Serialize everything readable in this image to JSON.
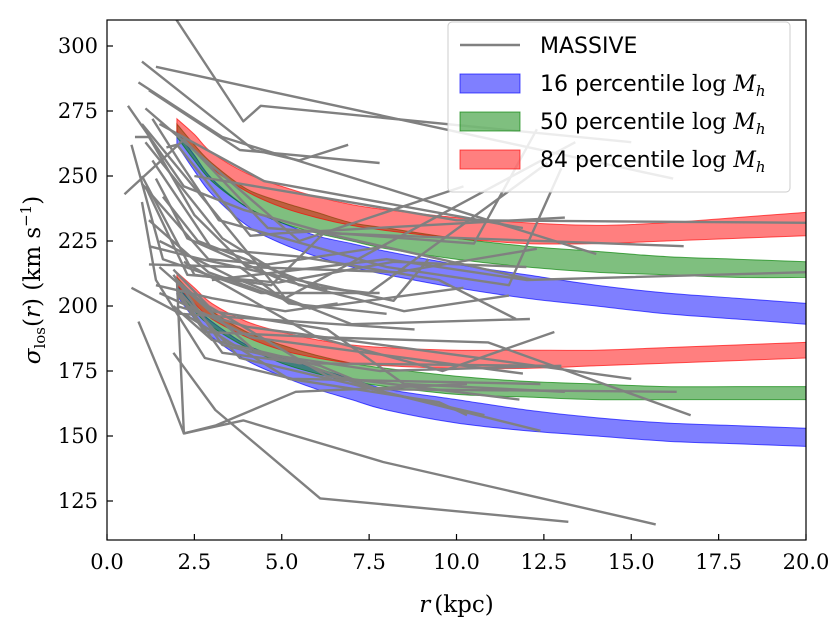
{
  "chart_data": {
    "type": "line",
    "xlabel": "r (kpc)",
    "ylabel": "σlos(r) (km s−1)",
    "xlim": [
      0.0,
      20.0
    ],
    "ylim": [
      110,
      310
    ],
    "xticks": [
      0.0,
      2.5,
      5.0,
      7.5,
      10.0,
      12.5,
      15.0,
      17.5,
      20.0
    ],
    "xtick_labels": [
      "0.0",
      "2.5",
      "5.0",
      "7.5",
      "10.0",
      "12.5",
      "15.0",
      "17.5",
      "20.0"
    ],
    "yticks": [
      125,
      150,
      175,
      200,
      225,
      250,
      275,
      300
    ],
    "ytick_labels": [
      "125",
      "150",
      "175",
      "200",
      "225",
      "250",
      "275",
      "300"
    ],
    "legend_position": "top-right",
    "legend": [
      {
        "label": "MASSIVE",
        "kind": "line",
        "color": "#808080"
      },
      {
        "label": "16 percentile log Mh",
        "kind": "patch",
        "color": "#0000ff"
      },
      {
        "label": "50 percentile log Mh",
        "kind": "patch",
        "color": "#008000"
      },
      {
        "label": "84 percentile log Mh",
        "kind": "patch",
        "color": "#ff0000"
      }
    ],
    "legend_math": {
      "word": "percentile",
      "log": "log",
      "var": "M",
      "sub": "h"
    },
    "bands": [
      {
        "group": "upper",
        "percentile": 16,
        "color": "#0000ff",
        "x": [
          2.0,
          2.5,
          3.0,
          4.0,
          5.0,
          6.0,
          7.0,
          8.0,
          10.0,
          12.0,
          14.0,
          16.0,
          18.0,
          20.0
        ],
        "y_low": [
          262,
          252,
          243,
          231,
          224,
          219,
          215,
          212,
          207,
          203,
          200,
          197,
          195,
          193
        ],
        "y_high": [
          267,
          258,
          249,
          238,
          232,
          227,
          224,
          221,
          216,
          212,
          208,
          205,
          203,
          201
        ]
      },
      {
        "group": "upper",
        "percentile": 50,
        "color": "#008000",
        "x": [
          2.0,
          2.5,
          3.0,
          4.0,
          5.0,
          6.0,
          7.0,
          8.0,
          10.0,
          12.0,
          14.0,
          16.0,
          18.0,
          20.0
        ],
        "y_low": [
          265,
          256,
          248,
          238,
          232,
          228,
          225,
          222,
          218,
          215,
          213,
          212,
          211,
          211
        ],
        "y_high": [
          270,
          262,
          255,
          245,
          240,
          236,
          232,
          230,
          226,
          223,
          221,
          219,
          218,
          217
        ]
      },
      {
        "group": "upper",
        "percentile": 84,
        "color": "#ff0000",
        "x": [
          2.0,
          2.5,
          3.0,
          4.0,
          5.0,
          6.0,
          7.0,
          8.0,
          10.0,
          12.0,
          14.0,
          16.0,
          18.0,
          20.0
        ],
        "y_low": [
          267,
          260,
          253,
          244,
          238,
          234,
          231,
          229,
          226,
          224,
          224,
          225,
          226,
          227
        ],
        "y_high": [
          272,
          266,
          259,
          251,
          246,
          242,
          239,
          237,
          234,
          232,
          231,
          232,
          234,
          236
        ]
      },
      {
        "group": "lower",
        "percentile": 16,
        "color": "#0000ff",
        "x": [
          2.0,
          2.5,
          3.0,
          4.0,
          5.0,
          6.0,
          7.0,
          8.0,
          10.0,
          12.0,
          14.0,
          16.0,
          18.0,
          20.0
        ],
        "y_low": [
          204,
          195,
          188,
          179,
          173,
          168,
          164,
          160,
          155,
          152,
          150,
          148,
          147,
          146
        ],
        "y_high": [
          208,
          200,
          194,
          185,
          180,
          176,
          172,
          168,
          164,
          160,
          157,
          155,
          154,
          153
        ]
      },
      {
        "group": "lower",
        "percentile": 50,
        "color": "#008000",
        "x": [
          2.0,
          2.5,
          3.0,
          4.0,
          5.0,
          6.0,
          7.0,
          8.0,
          10.0,
          12.0,
          14.0,
          16.0,
          18.0,
          20.0
        ],
        "y_low": [
          206,
          198,
          192,
          184,
          178,
          174,
          171,
          169,
          166,
          165,
          164,
          164,
          164,
          164
        ],
        "y_high": [
          211,
          204,
          198,
          190,
          185,
          181,
          178,
          176,
          173,
          171,
          170,
          169,
          169,
          169
        ]
      },
      {
        "group": "lower",
        "percentile": 84,
        "color": "#ff0000",
        "x": [
          2.0,
          2.5,
          3.0,
          4.0,
          5.0,
          6.0,
          7.0,
          8.0,
          10.0,
          12.0,
          14.0,
          16.0,
          18.0,
          20.0
        ],
        "y_low": [
          208,
          201,
          195,
          188,
          183,
          180,
          178,
          177,
          176,
          176,
          177,
          178,
          179,
          180
        ],
        "y_high": [
          213,
          207,
          201,
          194,
          190,
          187,
          185,
          184,
          183,
          183,
          183,
          184,
          185,
          186
        ]
      }
    ],
    "massive_profiles": [
      {
        "x": [
          1.5,
          3.9,
          4.4,
          15.0
        ],
        "y": [
          320,
          271,
          277,
          263
        ]
      },
      {
        "x": [
          1.4,
          16.2
        ],
        "y": [
          292,
          249
        ]
      },
      {
        "x": [
          1.0,
          4.2,
          5.5,
          6.9
        ],
        "y": [
          294,
          260,
          256,
          262
        ]
      },
      {
        "x": [
          0.9,
          3.3,
          14.0
        ],
        "y": [
          286,
          265,
          220
        ]
      },
      {
        "x": [
          1.2,
          3.8,
          7.8
        ],
        "y": [
          283,
          260,
          255
        ]
      },
      {
        "x": [
          0.6,
          2.2,
          3.9,
          6.3,
          16.5
        ],
        "y": [
          277,
          246,
          237,
          228,
          223
        ]
      },
      {
        "x": [
          1.3,
          2.1,
          3.2,
          8.0,
          11.5,
          13.0
        ],
        "y": [
          272,
          255,
          233,
          215,
          208,
          253
        ]
      },
      {
        "x": [
          1.5,
          4.5,
          11.9
        ],
        "y": [
          270,
          248,
          230
        ]
      },
      {
        "x": [
          1.1,
          5.5,
          10.2
        ],
        "y": [
          276,
          225,
          246
        ]
      },
      {
        "x": [
          0.5,
          2.2,
          4.6,
          10.5,
          12.3
        ],
        "y": [
          243,
          264,
          230,
          224,
          268
        ]
      },
      {
        "x": [
          0.8,
          1.2,
          2.5,
          4.0,
          8.3,
          12.3
        ],
        "y": [
          265,
          265,
          235,
          215,
          213,
          222
        ]
      },
      {
        "x": [
          1.0,
          5.1,
          13.4
        ],
        "y": [
          270,
          203,
          263
        ]
      },
      {
        "x": [
          1.7,
          2.0,
          4.1,
          5.0,
          13.1
        ],
        "y": [
          261,
          262,
          227,
          228,
          234
        ]
      },
      {
        "x": [
          1.1,
          3.3,
          5.5,
          7.5,
          12.6
        ],
        "y": [
          263,
          226,
          208,
          205,
          255
        ]
      },
      {
        "x": [
          1.3,
          3.0,
          5.5,
          9.5,
          11.7
        ],
        "y": [
          256,
          222,
          219,
          210,
          195
        ]
      },
      {
        "x": [
          1.0,
          2.5,
          4.7,
          6.2,
          12.2
        ],
        "y": [
          250,
          212,
          208,
          228,
          210
        ]
      },
      {
        "x": [
          1.4,
          2.3,
          5.0,
          8.5,
          11.5
        ],
        "y": [
          249,
          226,
          210,
          198,
          204
        ]
      },
      {
        "x": [
          1.0,
          2.9,
          4.6,
          8.0
        ],
        "y": [
          247,
          218,
          216,
          223
        ]
      },
      {
        "x": [
          1.2,
          2.9,
          5.8,
          10.2
        ],
        "y": [
          233,
          213,
          199,
          207
        ]
      },
      {
        "x": [
          1.1,
          2.3,
          4.9,
          8.2,
          12.0
        ],
        "y": [
          246,
          212,
          209,
          217,
          215
        ]
      },
      {
        "x": [
          1.6,
          2.6,
          6.3
        ],
        "y": [
          242,
          225,
          206
        ]
      },
      {
        "x": [
          1.2,
          2.7,
          8.2,
          9.2
        ],
        "y": [
          223,
          218,
          202,
          218
        ]
      },
      {
        "x": [
          1.2,
          3.8,
          5.2,
          8.0
        ],
        "y": [
          216,
          215,
          201,
          197
        ]
      },
      {
        "x": [
          1.5,
          3.6,
          7.0,
          12.1
        ],
        "y": [
          225,
          211,
          193,
          195
        ]
      },
      {
        "x": [
          0.7,
          1.6,
          4.4,
          7.8
        ],
        "y": [
          262,
          218,
          205,
          205
        ]
      },
      {
        "x": [
          1.4,
          3.0,
          5.1,
          6.6
        ],
        "y": [
          208,
          203,
          198,
          201
        ]
      },
      {
        "x": [
          1.5,
          2.8,
          4.1,
          11.9
        ],
        "y": [
          205,
          197,
          188,
          174
        ]
      },
      {
        "x": [
          0.7,
          2.1,
          8.8
        ],
        "y": [
          207,
          197,
          191
        ]
      },
      {
        "x": [
          2.0,
          2.8,
          6.1,
          10.9,
          16.7
        ],
        "y": [
          205,
          190,
          188,
          186,
          158
        ]
      },
      {
        "x": [
          1.5,
          4.3,
          7.8,
          13.0
        ],
        "y": [
          215,
          182,
          175,
          177
        ]
      },
      {
        "x": [
          2.2,
          6.0,
          9.6,
          12.8
        ],
        "y": [
          217,
          188,
          175,
          190
        ]
      },
      {
        "x": [
          2.0,
          3.0,
          6.3,
          8.5,
          13.1
        ],
        "y": [
          210,
          198,
          191,
          170,
          167
        ]
      },
      {
        "x": [
          2.0,
          4.0,
          10.1,
          15.0
        ],
        "y": [
          200,
          192,
          181,
          172
        ]
      },
      {
        "x": [
          1.0,
          1.4,
          2.8,
          5.3,
          12.4
        ],
        "y": [
          240,
          210,
          180,
          172,
          170
        ]
      },
      {
        "x": [
          2.1,
          3.8,
          7.0,
          12.4
        ],
        "y": [
          205,
          180,
          170,
          152
        ]
      },
      {
        "x": [
          1.9,
          2.9,
          6.3,
          11.8
        ],
        "y": [
          214,
          200,
          173,
          164
        ]
      },
      {
        "x": [
          2.0,
          3.3,
          5.6,
          7.6,
          16.3
        ],
        "y": [
          206,
          182,
          178,
          168,
          167
        ]
      },
      {
        "x": [
          2.2,
          5.2,
          9.5,
          10.3
        ],
        "y": [
          197,
          172,
          163,
          158
        ]
      },
      {
        "x": [
          1.9,
          3.0,
          6.1,
          7.9,
          10.8
        ],
        "y": [
          200,
          187,
          177,
          167,
          158
        ]
      },
      {
        "x": [
          0.9,
          1.8,
          2.2,
          3.1,
          5.4,
          10.3
        ],
        "y": [
          194,
          165,
          151,
          154,
          167,
          170
        ]
      },
      {
        "x": [
          1.9,
          3.3,
          5.5,
          12.6
        ],
        "y": [
          212,
          185,
          178,
          177
        ]
      },
      {
        "x": [
          2.0,
          2.2,
          3.9,
          7.9,
          15.7
        ],
        "y": [
          210,
          151,
          156,
          140,
          116
        ]
      },
      {
        "x": [
          1.9,
          3.1,
          6.1,
          13.2
        ],
        "y": [
          182,
          160,
          126,
          117
        ]
      },
      {
        "x": [
          3.0,
          8.0,
          12.0,
          20.0
        ],
        "y": [
          210,
          218,
          210,
          213
        ]
      },
      {
        "x": [
          2.5,
          10.0,
          20.0
        ],
        "y": [
          250,
          233,
          232
        ]
      }
    ]
  }
}
